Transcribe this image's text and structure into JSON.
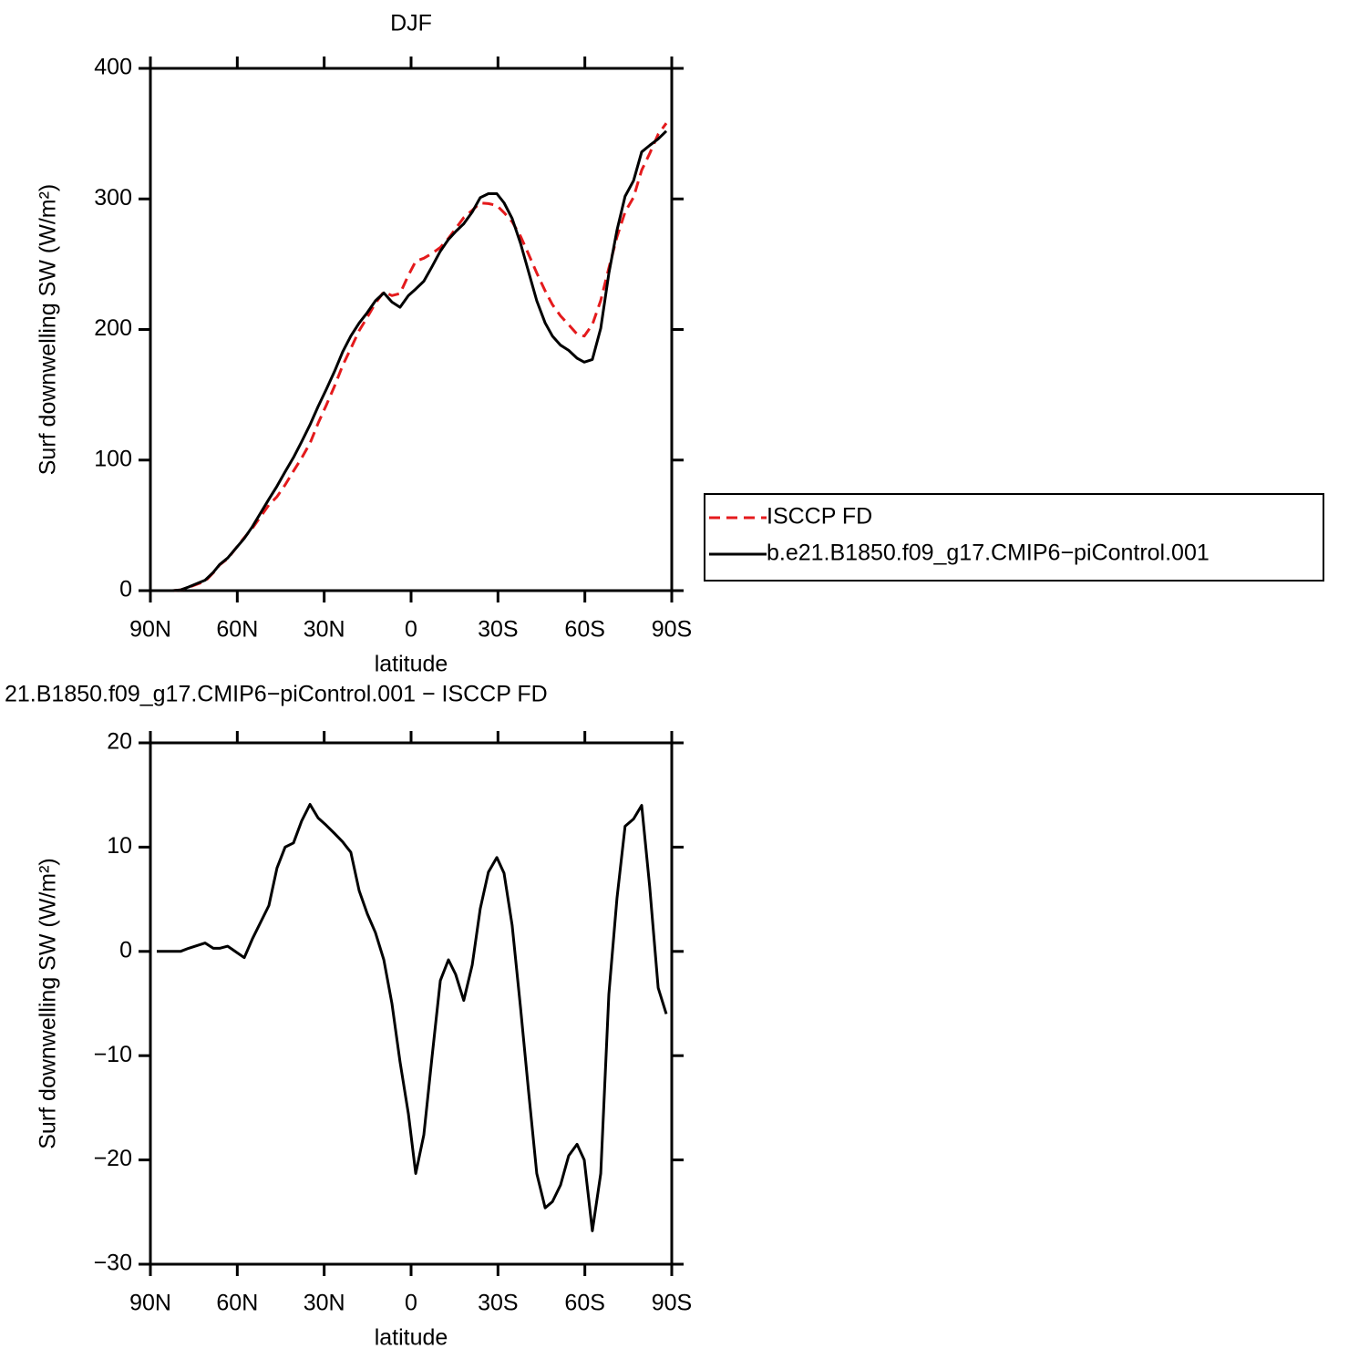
{
  "chart_data": [
    {
      "type": "line",
      "title": "DJF",
      "xlabel": "latitude",
      "ylabel": "Surf downwelling SW (W/m²)",
      "x": [
        87.8,
        85.0,
        82.4,
        79.6,
        76.8,
        71.1,
        68.3,
        66.1,
        63.3,
        57.6,
        54.8,
        49.1,
        46.3,
        43.5,
        40.6,
        37.8,
        34.9,
        32.1,
        29.3,
        26.4,
        23.6,
        20.8,
        17.9,
        15.1,
        12.3,
        9.4,
        6.6,
        3.8,
        0.9,
        -1.6,
        -4.4,
        -7.2,
        -10.1,
        -12.9,
        -15.4,
        -18.2,
        -21.1,
        -23.9,
        -26.7,
        -29.6,
        -32.1,
        -34.9,
        -37.8,
        -40.6,
        -43.4,
        -46.3,
        -48.8,
        -51.6,
        -54.4,
        -57.3,
        -59.8,
        -62.6,
        -65.5,
        -68.3,
        -71.1,
        -73.9,
        -76.8,
        -79.6,
        -82.4,
        -85.3,
        -88.1
      ],
      "series": [
        {
          "name": "ISCCP FD",
          "color": "#e41a1c",
          "line_style": "dashed",
          "values": [
            0,
            0,
            0,
            0.5,
            2.5,
            7.2,
            13.7,
            19.7,
            24.5,
            40.6,
            47.8,
            65.6,
            72,
            81,
            91.6,
            101.5,
            112.9,
            128.2,
            141.9,
            156.7,
            172.5,
            185.5,
            199.2,
            209.4,
            220.2,
            228.8,
            226,
            227.6,
            241.6,
            252.3,
            254.6,
            258.2,
            262.8,
            269.8,
            277.2,
            285.7,
            291.3,
            296.9,
            296.4,
            295,
            289.5,
            282.5,
            271.4,
            257.5,
            243.3,
            229.6,
            219,
            210.4,
            203.6,
            196.5,
            195,
            203.8,
            222.3,
            247.1,
            270.9,
            290,
            301.3,
            322,
            334.8,
            349.5,
            358
          ]
        },
        {
          "name": "b.e21.B1850.f09_g17.CMIP6−piControl.001",
          "color": "#000000",
          "line_style": "solid",
          "values": [
            0,
            0,
            0,
            0.5,
            2.8,
            8,
            14,
            20,
            25,
            40,
            49,
            70,
            80,
            91,
            102,
            114,
            127,
            141,
            154,
            168,
            183,
            195,
            205,
            213,
            222,
            228,
            221,
            217,
            226,
            231,
            237,
            248,
            260,
            269,
            275,
            281,
            290,
            301,
            304,
            304,
            297,
            285,
            266,
            244,
            222,
            205,
            195,
            188,
            184,
            178,
            175,
            177,
            201,
            243,
            276,
            302,
            314,
            336,
            341,
            346,
            352
          ]
        }
      ],
      "xlim": [
        90,
        -90
      ],
      "xticks": [
        {
          "value": 90,
          "label": "90N"
        },
        {
          "value": 60,
          "label": "60N"
        },
        {
          "value": 30,
          "label": "30N"
        },
        0,
        {
          "value": -30,
          "label": "30S"
        },
        {
          "value": -60,
          "label": "60S"
        },
        {
          "value": -90,
          "label": "90S"
        }
      ],
      "ylim": [
        0,
        400
      ],
      "yticks": [
        0,
        100,
        200,
        300,
        400
      ],
      "legend": "right"
    },
    {
      "type": "line",
      "title": "21.B1850.f09_g17.CMIP6−piControl.001 − ISCCP FD",
      "xlabel": "latitude",
      "ylabel": "Surf downwelling SW (W/m²)",
      "x": [
        87.8,
        85.0,
        82.4,
        79.6,
        76.8,
        71.1,
        68.3,
        66.1,
        63.3,
        57.6,
        54.8,
        49.1,
        46.3,
        43.5,
        40.6,
        37.8,
        34.9,
        32.1,
        29.3,
        26.4,
        23.6,
        20.8,
        17.9,
        15.1,
        12.3,
        9.4,
        6.6,
        3.8,
        0.9,
        -1.6,
        -4.4,
        -7.2,
        -10.1,
        -12.9,
        -15.4,
        -18.2,
        -21.1,
        -23.9,
        -26.7,
        -29.6,
        -32.1,
        -34.9,
        -37.8,
        -40.6,
        -43.4,
        -46.3,
        -48.8,
        -51.6,
        -54.4,
        -57.3,
        -59.8,
        -62.6,
        -65.5,
        -68.3,
        -71.1,
        -73.9,
        -76.8,
        -79.6,
        -82.4,
        -85.3,
        -88.1
      ],
      "values": [
        0,
        0,
        0,
        0,
        0.3,
        0.8,
        0.3,
        0.3,
        0.5,
        -0.6,
        1.2,
        4.4,
        8,
        10,
        10.4,
        12.5,
        14.1,
        12.8,
        12.1,
        11.3,
        10.5,
        9.5,
        5.8,
        3.6,
        1.8,
        -0.8,
        -5,
        -10.6,
        -15.6,
        -21.3,
        -17.6,
        -10.2,
        -2.8,
        -0.8,
        -2.2,
        -4.7,
        -1.3,
        4.1,
        7.6,
        9,
        7.5,
        2.5,
        -5.4,
        -13.5,
        -21.3,
        -24.6,
        -24,
        -22.4,
        -19.6,
        -18.5,
        -20,
        -26.8,
        -21.3,
        -4.1,
        5.1,
        12,
        12.7,
        14,
        6.2,
        -3.5,
        -6
      ],
      "color": "#000000",
      "xlim": [
        90,
        -90
      ],
      "xticks": [
        {
          "value": 90,
          "label": "90N"
        },
        {
          "value": 60,
          "label": "60N"
        },
        {
          "value": 30,
          "label": "30N"
        },
        0,
        {
          "value": -30,
          "label": "30S"
        },
        {
          "value": -60,
          "label": "60S"
        },
        {
          "value": -90,
          "label": "90S"
        }
      ],
      "ylim": [
        -30,
        20
      ],
      "yticks": [
        {
          "value": -30,
          "label": "−30"
        },
        {
          "value": -20,
          "label": "−20"
        },
        {
          "value": -10,
          "label": "−10"
        },
        0,
        10,
        20
      ]
    }
  ]
}
